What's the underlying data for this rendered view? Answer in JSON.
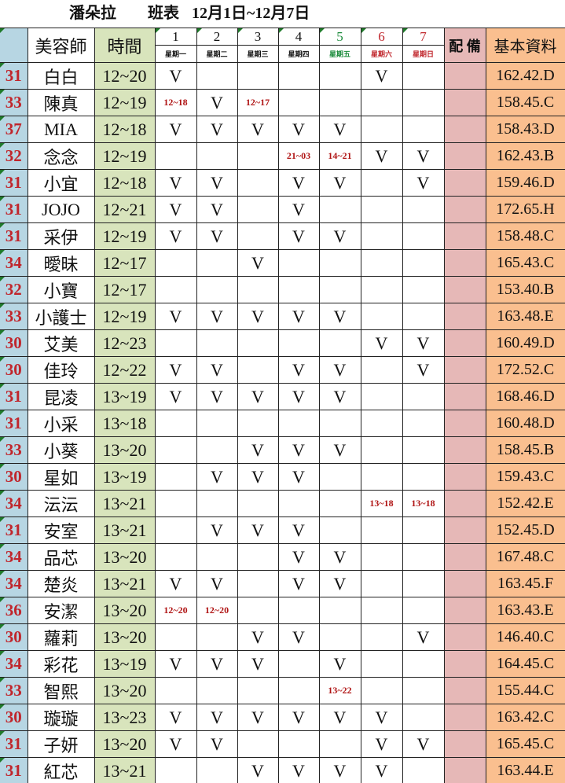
{
  "title": {
    "store": "潘朵拉",
    "label": "班表",
    "range": "12月1日~12月7日"
  },
  "header": {
    "stylist": "美容師",
    "time": "時間",
    "equip": "配 備",
    "base": "基本資料",
    "days": [
      {
        "num": "1",
        "wd": "星期一"
      },
      {
        "num": "2",
        "wd": "星期二"
      },
      {
        "num": "3",
        "wd": "星期三"
      },
      {
        "num": "4",
        "wd": "星期四"
      },
      {
        "num": "5",
        "wd": "星期五",
        "color": "#1a8a3a"
      },
      {
        "num": "6",
        "wd": "星期六",
        "color": "#c0262c"
      },
      {
        "num": "7",
        "wd": "星期日",
        "color": "#c0262c"
      }
    ]
  },
  "colors": {
    "num_bg": "#b7d6e3",
    "time_bg": "#d8e4bc",
    "equip_bg": "#e6b8b7",
    "base_bg": "#fabf8f",
    "accent_red": "#c0262c"
  },
  "rows": [
    {
      "num": "31",
      "name": "白白",
      "time": "12~20",
      "days": [
        "V",
        "",
        "",
        "",
        "",
        "V",
        ""
      ],
      "base": "162.42.D"
    },
    {
      "num": "33",
      "name": "陳真",
      "time": "12~19",
      "days": [
        "12~18",
        "V",
        "12~17",
        "",
        "",
        "",
        ""
      ],
      "base": "158.45.C"
    },
    {
      "num": "37",
      "name": "MIA",
      "time": "12~18",
      "days": [
        "V",
        "V",
        "V",
        "V",
        "V",
        "",
        ""
      ],
      "base": "158.43.D"
    },
    {
      "num": "32",
      "name": "念念",
      "time": "12~19",
      "days": [
        "",
        "",
        "",
        "21~03",
        "14~21",
        "V",
        "V"
      ],
      "base": "162.43.B"
    },
    {
      "num": "31",
      "name": "小宜",
      "time": "12~18",
      "days": [
        "V",
        "V",
        "",
        "V",
        "V",
        "",
        "V"
      ],
      "base": "159.46.D"
    },
    {
      "num": "31",
      "name": "JOJO",
      "time": "12~21",
      "days": [
        "V",
        "V",
        "",
        "V",
        "",
        "",
        ""
      ],
      "base": "172.65.H"
    },
    {
      "num": "31",
      "name": "采伊",
      "time": "12~19",
      "days": [
        "V",
        "V",
        "",
        "V",
        "V",
        "",
        ""
      ],
      "base": "158.48.C"
    },
    {
      "num": "34",
      "name": "曖昧",
      "time": "12~17",
      "days": [
        "",
        "",
        "V",
        "",
        "",
        "",
        ""
      ],
      "base": "165.43.C"
    },
    {
      "num": "32",
      "name": "小寶",
      "time": "12~17",
      "days": [
        "",
        "",
        "",
        "",
        "",
        "",
        ""
      ],
      "base": "153.40.B"
    },
    {
      "num": "33",
      "name": "小護士",
      "time": "12~19",
      "days": [
        "V",
        "V",
        "V",
        "V",
        "V",
        "",
        ""
      ],
      "base": "163.48.E"
    },
    {
      "num": "30",
      "name": "艾美",
      "time": "12~23",
      "days": [
        "",
        "",
        "",
        "",
        "",
        "V",
        "V"
      ],
      "base": "160.49.D"
    },
    {
      "num": "30",
      "name": "佳玲",
      "time": "12~22",
      "days": [
        "V",
        "V",
        "",
        "V",
        "V",
        "",
        "V"
      ],
      "base": "172.52.C"
    },
    {
      "num": "31",
      "name": "昆凌",
      "time": "13~19",
      "days": [
        "V",
        "V",
        "V",
        "V",
        "V",
        "",
        ""
      ],
      "base": "168.46.D"
    },
    {
      "num": "31",
      "name": "小采",
      "time": "13~18",
      "days": [
        "",
        "",
        "",
        "",
        "",
        "",
        ""
      ],
      "base": "160.48.D"
    },
    {
      "num": "33",
      "name": "小葵",
      "time": "13~20",
      "days": [
        "",
        "",
        "V",
        "V",
        "V",
        "",
        ""
      ],
      "base": "158.45.B"
    },
    {
      "num": "30",
      "name": "星如",
      "time": "13~19",
      "days": [
        "",
        "V",
        "V",
        "V",
        "",
        "",
        ""
      ],
      "base": "159.43.C"
    },
    {
      "num": "34",
      "name": "沄沄",
      "time": "13~21",
      "days": [
        "",
        "",
        "",
        "",
        "",
        "13~18",
        "13~18"
      ],
      "base": "152.42.E"
    },
    {
      "num": "31",
      "name": "安室",
      "time": "13~21",
      "days": [
        "",
        "V",
        "V",
        "V",
        "",
        "",
        ""
      ],
      "base": "152.45.D"
    },
    {
      "num": "34",
      "name": "品芯",
      "time": "13~20",
      "days": [
        "",
        "",
        "",
        "V",
        "V",
        "",
        ""
      ],
      "base": "167.48.C"
    },
    {
      "num": "34",
      "name": "楚炎",
      "time": "13~21",
      "days": [
        "V",
        "V",
        "",
        "V",
        "V",
        "",
        ""
      ],
      "base": "163.45.F"
    },
    {
      "num": "36",
      "name": "安潔",
      "time": "13~20",
      "days": [
        "12~20",
        "12~20",
        "",
        "",
        "",
        "",
        ""
      ],
      "base": "163.43.E"
    },
    {
      "num": "30",
      "name": "蘿莉",
      "time": "13~20",
      "days": [
        "",
        "",
        "V",
        "V",
        "",
        "",
        "V"
      ],
      "base": "146.40.C"
    },
    {
      "num": "34",
      "name": "彩花",
      "time": "13~19",
      "days": [
        "V",
        "V",
        "V",
        "",
        "V",
        "",
        ""
      ],
      "base": "164.45.C"
    },
    {
      "num": "33",
      "name": "智熙",
      "time": "13~20",
      "days": [
        "",
        "",
        "",
        "",
        "13~22",
        "",
        ""
      ],
      "base": "155.44.C"
    },
    {
      "num": "30",
      "name": "璇璇",
      "time": "13~23",
      "days": [
        "V",
        "V",
        "V",
        "V",
        "V",
        "V",
        ""
      ],
      "base": "163.42.C"
    },
    {
      "num": "31",
      "name": "子妍",
      "time": "13~20",
      "days": [
        "V",
        "V",
        "",
        "",
        "",
        "V",
        "V"
      ],
      "base": "165.45.C"
    },
    {
      "num": "31",
      "name": "紅芯",
      "time": "13~21",
      "days": [
        "",
        "",
        "V",
        "V",
        "V",
        "V",
        ""
      ],
      "base": "163.44.E"
    }
  ]
}
